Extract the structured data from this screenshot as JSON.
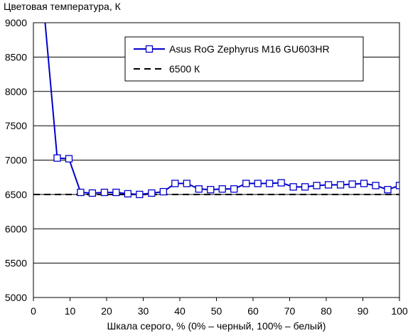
{
  "chart_data": {
    "type": "line",
    "ylabel": "Цветовая температура, К",
    "xlabel": "Шкала серого, % (0% – черный, 100% – белый)",
    "xlim": [
      0,
      100
    ],
    "ylim": [
      5000,
      9000
    ],
    "xticks": [
      0,
      10,
      20,
      30,
      40,
      50,
      60,
      70,
      80,
      90,
      100
    ],
    "yticks": [
      5000,
      5500,
      6000,
      6500,
      7000,
      7500,
      8000,
      8500,
      9000
    ],
    "grid": "horizontal",
    "legend_position": "top-right",
    "series": [
      {
        "name": "Asus RoG Zephyrus M16 GU603HR",
        "color": "#0000cc",
        "marker": "square",
        "x": [
          3.2,
          6.5,
          9.7,
          12.9,
          16.1,
          19.4,
          22.6,
          25.8,
          29.0,
          32.3,
          35.5,
          38.7,
          41.9,
          45.2,
          48.4,
          51.6,
          54.8,
          58.1,
          61.3,
          64.5,
          67.7,
          71.0,
          74.2,
          77.4,
          80.6,
          83.9,
          87.1,
          90.3,
          93.5,
          96.8,
          100.0
        ],
        "y": [
          9000,
          7030,
          7020,
          6530,
          6520,
          6530,
          6530,
          6510,
          6500,
          6520,
          6540,
          6660,
          6660,
          6580,
          6570,
          6580,
          6580,
          6660,
          6660,
          6660,
          6670,
          6610,
          6610,
          6630,
          6640,
          6640,
          6650,
          6660,
          6630,
          6570,
          6630
        ]
      },
      {
        "name": "6500 К",
        "color": "#000000",
        "style": "dashed",
        "x": [
          0,
          100
        ],
        "y": [
          6500,
          6500
        ]
      }
    ]
  }
}
